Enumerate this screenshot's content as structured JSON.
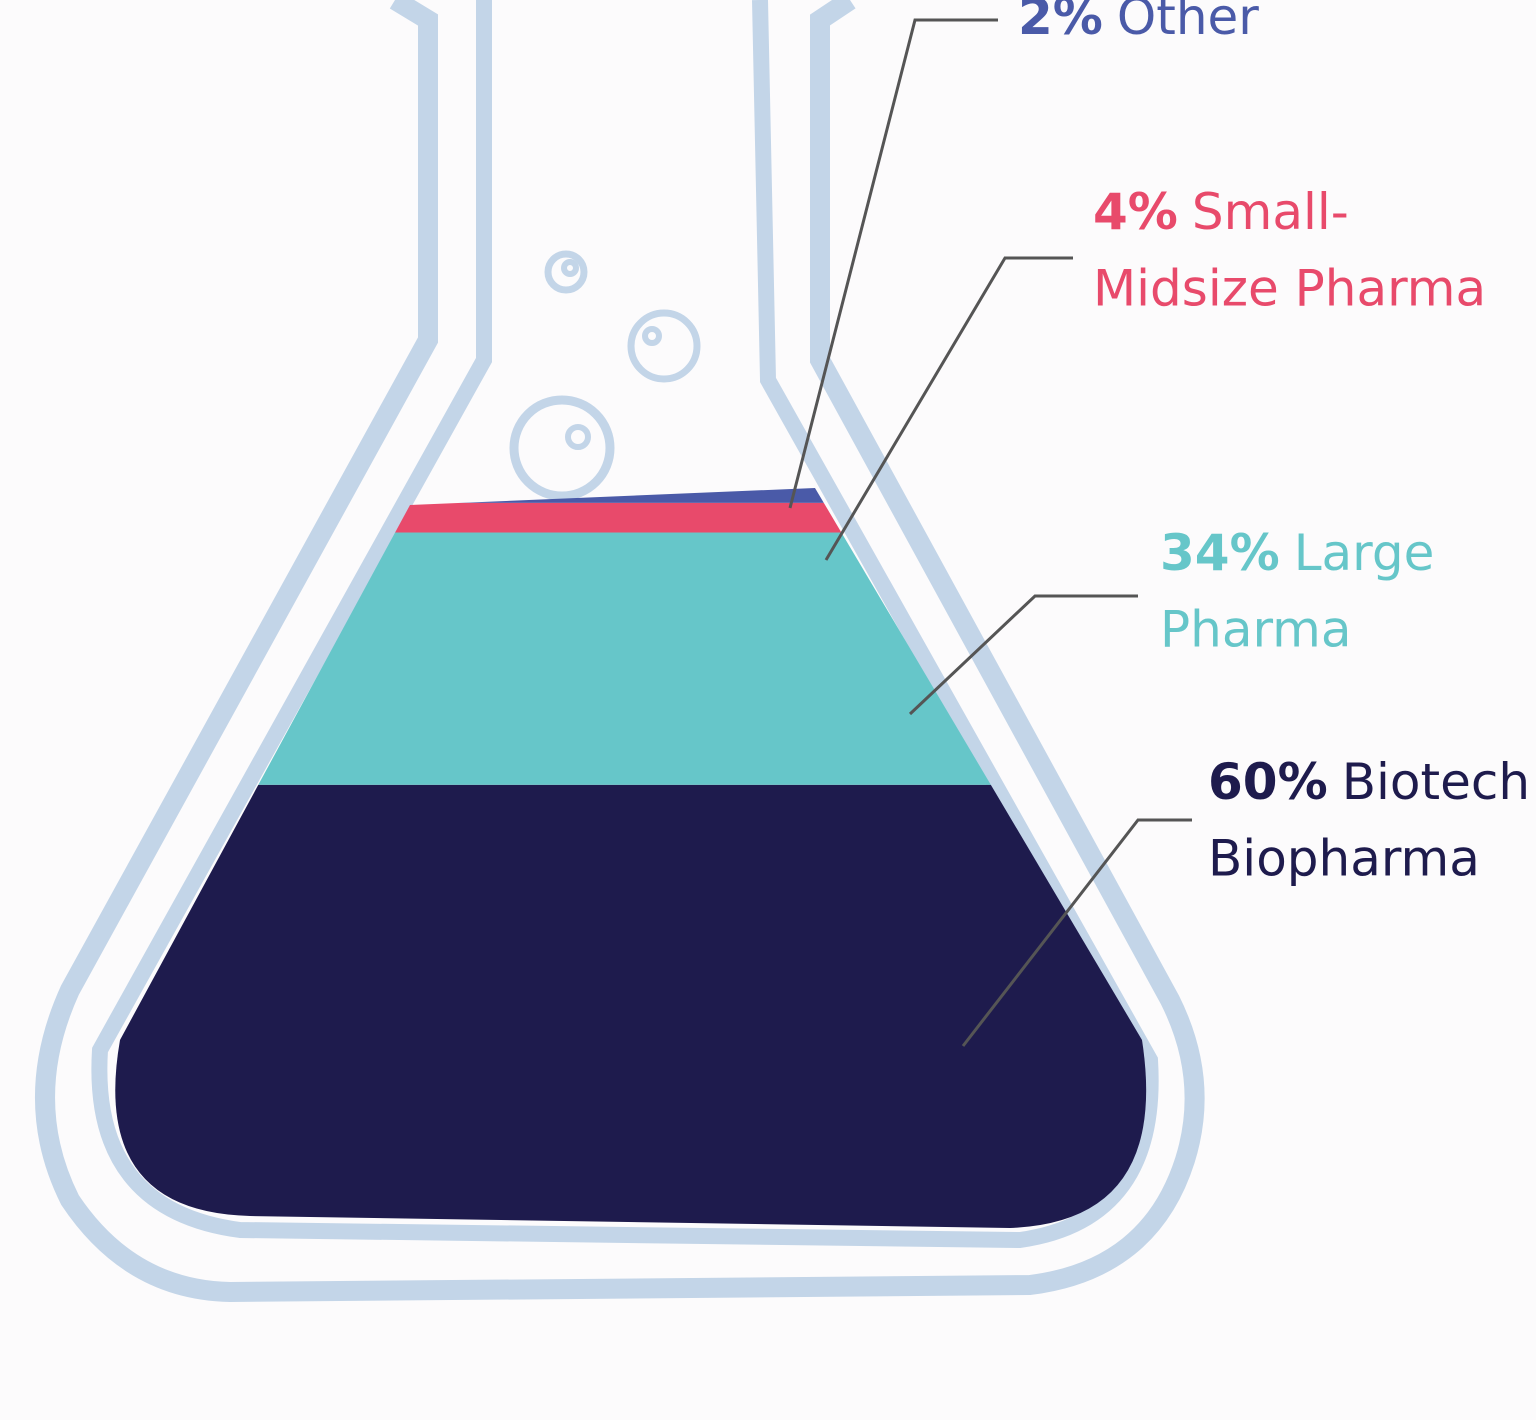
{
  "chart_data": {
    "type": "flask",
    "categories": [
      [
        "Other"
      ],
      [
        "Small-",
        "Midsize Pharma"
      ],
      [
        "Large",
        "Pharma"
      ],
      [
        "Biotech",
        "Biopharma"
      ]
    ],
    "values": [
      2,
      4,
      34,
      60
    ],
    "value_labels": [
      "2%",
      "4%",
      "34%",
      "60%"
    ],
    "colors": [
      "#4a5aa8",
      "#e84a6b",
      "#66c6c9",
      "#1e1b4d"
    ],
    "ylim": [
      0,
      100
    ]
  }
}
